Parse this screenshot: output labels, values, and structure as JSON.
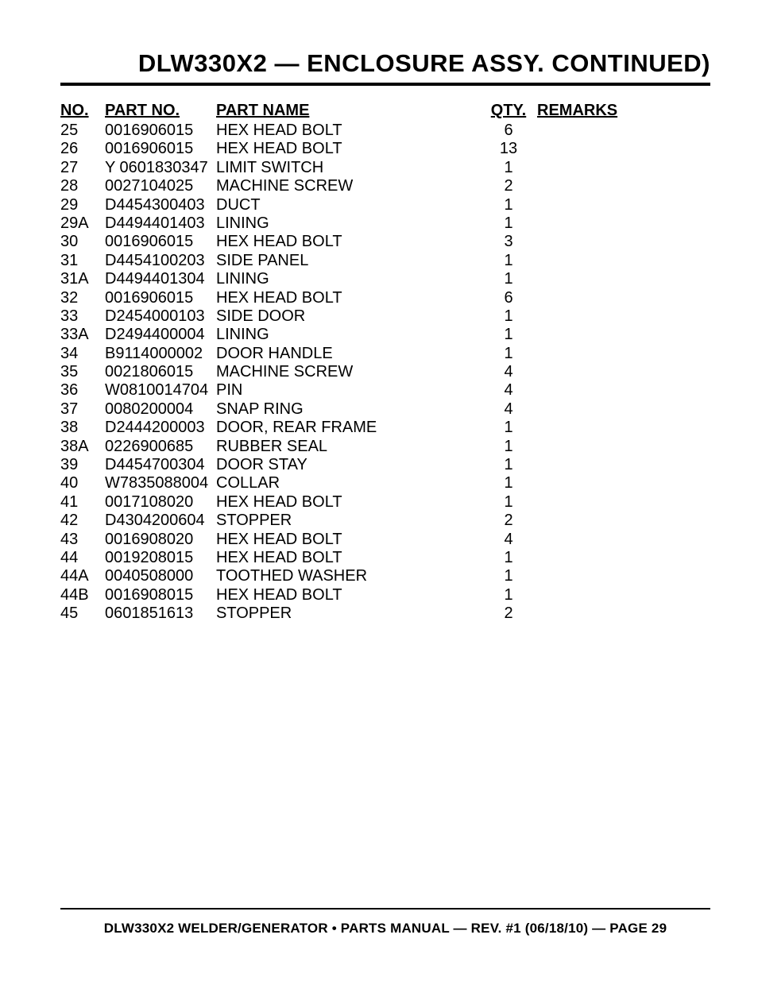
{
  "title": "DLW330X2 — ENCLOSURE ASSY. CONTINUED)",
  "columns": {
    "no": "NO.",
    "part_no": "PART NO.",
    "part_name": "PART NAME",
    "qty": "QTY.",
    "remarks": "REMARKS"
  },
  "rows": [
    {
      "no": "25",
      "part_no": "0016906015",
      "part_name": "HEX HEAD BOLT",
      "qty": "6",
      "remarks": ""
    },
    {
      "no": "26",
      "part_no": "0016906015",
      "part_name": "HEX HEAD BOLT",
      "qty": "13",
      "remarks": ""
    },
    {
      "no": "27",
      "part_no": "Y 0601830347",
      "part_name": "LIMIT SWITCH",
      "qty": "1",
      "remarks": ""
    },
    {
      "no": "28",
      "part_no": "0027104025",
      "part_name": "MACHINE SCREW",
      "qty": "2",
      "remarks": ""
    },
    {
      "no": "29",
      "part_no": "D4454300403",
      "part_name": "DUCT",
      "qty": "1",
      "remarks": ""
    },
    {
      "no": "29A",
      "part_no": "D4494401403",
      "part_name": "LINING",
      "qty": "1",
      "remarks": ""
    },
    {
      "no": "30",
      "part_no": "0016906015",
      "part_name": "HEX HEAD BOLT",
      "qty": "3",
      "remarks": ""
    },
    {
      "no": "31",
      "part_no": "D4454100203",
      "part_name": "SIDE PANEL",
      "qty": "1",
      "remarks": ""
    },
    {
      "no": "31A",
      "part_no": "D4494401304",
      "part_name": "LINING",
      "qty": "1",
      "remarks": ""
    },
    {
      "no": "32",
      "part_no": "0016906015",
      "part_name": "HEX HEAD BOLT",
      "qty": "6",
      "remarks": ""
    },
    {
      "no": "33",
      "part_no": "D2454000103",
      "part_name": "SIDE DOOR",
      "qty": "1",
      "remarks": ""
    },
    {
      "no": "33A",
      "part_no": "D2494400004",
      "part_name": "LINING",
      "qty": "1",
      "remarks": ""
    },
    {
      "no": "34",
      "part_no": "B9114000002",
      "part_name": "DOOR HANDLE",
      "qty": "1",
      "remarks": ""
    },
    {
      "no": "35",
      "part_no": "0021806015",
      "part_name": "MACHINE SCREW",
      "qty": "4",
      "remarks": ""
    },
    {
      "no": "36",
      "part_no": "W0810014704",
      "part_name": "PIN",
      "qty": "4",
      "remarks": ""
    },
    {
      "no": "37",
      "part_no": "0080200004",
      "part_name": "SNAP RING",
      "qty": "4",
      "remarks": ""
    },
    {
      "no": "38",
      "part_no": "D2444200003",
      "part_name": "DOOR, REAR FRAME",
      "qty": "1",
      "remarks": ""
    },
    {
      "no": "38A",
      "part_no": "0226900685",
      "part_name": "RUBBER SEAL",
      "qty": "1",
      "remarks": ""
    },
    {
      "no": "39",
      "part_no": "D4454700304",
      "part_name": "DOOR STAY",
      "qty": "1",
      "remarks": ""
    },
    {
      "no": "40",
      "part_no": "W7835088004",
      "part_name": "COLLAR",
      "qty": "1",
      "remarks": ""
    },
    {
      "no": "41",
      "part_no": "0017108020",
      "part_name": "HEX HEAD BOLT",
      "qty": "1",
      "remarks": ""
    },
    {
      "no": "42",
      "part_no": "D4304200604",
      "part_name": "STOPPER",
      "qty": "2",
      "remarks": ""
    },
    {
      "no": "43",
      "part_no": "0016908020",
      "part_name": "HEX HEAD BOLT",
      "qty": "4",
      "remarks": ""
    },
    {
      "no": "44",
      "part_no": "0019208015",
      "part_name": "HEX HEAD BOLT",
      "qty": "1",
      "remarks": ""
    },
    {
      "no": "44A",
      "part_no": "0040508000",
      "part_name": "TOOTHED WASHER",
      "qty": "1",
      "remarks": ""
    },
    {
      "no": "44B",
      "part_no": "0016908015",
      "part_name": "HEX HEAD BOLT",
      "qty": "1",
      "remarks": ""
    },
    {
      "no": "45",
      "part_no": "0601851613",
      "part_name": "STOPPER",
      "qty": "2",
      "remarks": ""
    }
  ],
  "footer": "DLW330X2 WELDER/GENERATOR • PARTS MANUAL — REV. #1 (06/18/10) — PAGE 29"
}
